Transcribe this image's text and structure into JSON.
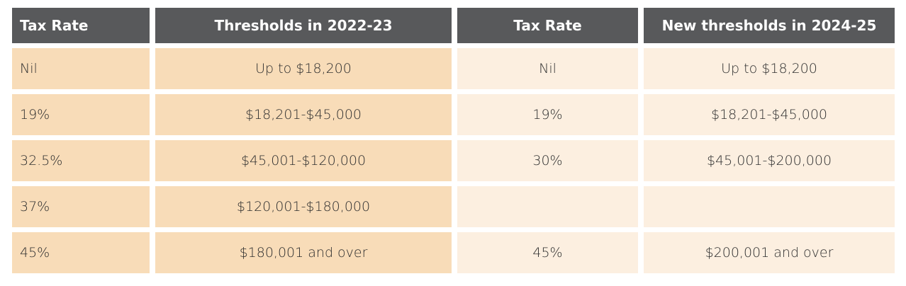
{
  "table": {
    "header": [
      "Tax Rate",
      "Thresholds in 2022-23",
      "Tax Rate",
      "New thresholds in 2024-25"
    ],
    "rows": [
      [
        "Nil",
        "Up to $18,200",
        "Nil",
        "Up to $18,200"
      ],
      [
        "19%",
        "$18,201-$45,000",
        "19%",
        "$18,201-$45,000"
      ],
      [
        "32.5%",
        "$45,001-$120,000",
        "30%",
        "$45,001-$200,000"
      ],
      [
        "37%",
        "$120,001-$180,000",
        null,
        null
      ],
      [
        "45%",
        "$180,001 and over",
        "45%",
        "$200,001 and over"
      ]
    ]
  }
}
